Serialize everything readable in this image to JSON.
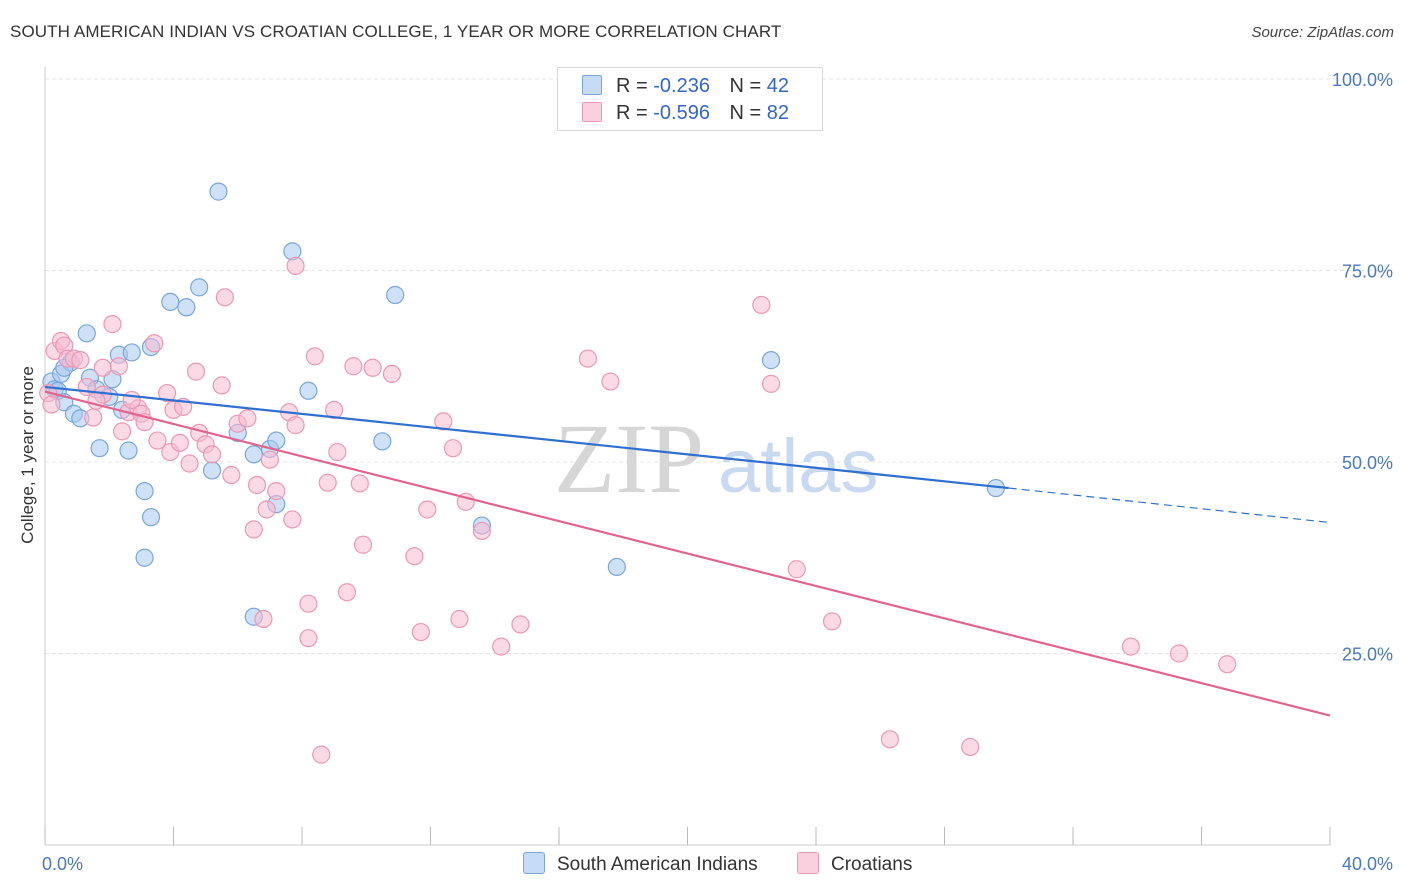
{
  "title": "SOUTH AMERICAN INDIAN VS CROATIAN COLLEGE, 1 YEAR OR MORE CORRELATION CHART",
  "source": "Source: ZipAtlas.com",
  "watermark": {
    "zip": "ZIP",
    "atlas": "atlas"
  },
  "legend": {
    "row1": {
      "r_label": "R =",
      "r_value": "-0.236",
      "n_label": "N =",
      "n_value": "42"
    },
    "row2": {
      "r_label": "R =",
      "r_value": "-0.596",
      "n_label": "N =",
      "n_value": "82"
    }
  },
  "colors": {
    "blue_fill": "#a8c8f0",
    "blue_stroke": "#7aa6dc",
    "blue_line": "#2f6fd0",
    "pink_fill": "#f8bcd0",
    "pink_stroke": "#ec98b4",
    "pink_line": "#e0648e"
  },
  "chart_data": {
    "type": "scatter",
    "xlabel": "",
    "ylabel": "College, 1 year or more",
    "xlim": [
      0,
      40
    ],
    "ylim": [
      0,
      100
    ],
    "x_tick_labels": [
      "0.0%",
      "40.0%"
    ],
    "y_ticks": [
      25,
      50,
      75,
      100
    ],
    "y_tick_labels": [
      "25.0%",
      "50.0%",
      "75.0%",
      "100.0%"
    ],
    "grid": true,
    "legend_position": "top-center",
    "series": [
      {
        "name": "South American Indians",
        "color": "#a8c8f0",
        "trend": {
          "x": [
            0,
            30
          ],
          "y": [
            59.8,
            46.6
          ],
          "dashed_to": [
            40,
            42.1
          ]
        },
        "points": [
          [
            0.2,
            60.5
          ],
          [
            0.3,
            59.5
          ],
          [
            0.4,
            59.3
          ],
          [
            0.5,
            61.5
          ],
          [
            0.6,
            57.8
          ],
          [
            0.8,
            63
          ],
          [
            0.9,
            56.3
          ],
          [
            1.1,
            55.7
          ],
          [
            1.3,
            66.8
          ],
          [
            1.4,
            61
          ],
          [
            1.6,
            59.5
          ],
          [
            1.7,
            51.8
          ],
          [
            2,
            58.5
          ],
          [
            2.1,
            60.8
          ],
          [
            2.3,
            64
          ],
          [
            2.4,
            56.8
          ],
          [
            2.6,
            51.5
          ],
          [
            2.7,
            64.3
          ],
          [
            3.1,
            46.2
          ],
          [
            3.1,
            37.5
          ],
          [
            3.3,
            42.8
          ],
          [
            3.3,
            65
          ],
          [
            3.9,
            70.9
          ],
          [
            4.4,
            70.2
          ],
          [
            4.8,
            72.8
          ],
          [
            5.2,
            48.9
          ],
          [
            5.4,
            85.3
          ],
          [
            6,
            53.8
          ],
          [
            6.5,
            51
          ],
          [
            6.5,
            29.8
          ],
          [
            7,
            51.7
          ],
          [
            7.2,
            52.8
          ],
          [
            7.2,
            44.5
          ],
          [
            7.7,
            77.5
          ],
          [
            8.2,
            59.3
          ],
          [
            10.5,
            52.7
          ],
          [
            10.9,
            71.8
          ],
          [
            13.6,
            41.7
          ],
          [
            17.8,
            36.3
          ],
          [
            22.6,
            63.3
          ],
          [
            29.6,
            46.6
          ],
          [
            0.6,
            62.3
          ]
        ]
      },
      {
        "name": "Croatians",
        "color": "#f8bcd0",
        "trend": {
          "x": [
            0,
            40
          ],
          "y": [
            59.2,
            16.9
          ]
        },
        "points": [
          [
            0.1,
            59
          ],
          [
            0.3,
            64.5
          ],
          [
            0.5,
            65.8
          ],
          [
            0.6,
            65.2
          ],
          [
            0.7,
            63.5
          ],
          [
            0.9,
            63.5
          ],
          [
            1.1,
            63.3
          ],
          [
            1.3,
            59.8
          ],
          [
            1.5,
            55.8
          ],
          [
            1.8,
            58.8
          ],
          [
            1.8,
            62.3
          ],
          [
            2.1,
            68
          ],
          [
            2.3,
            62.5
          ],
          [
            2.4,
            54
          ],
          [
            2.6,
            56.5
          ],
          [
            2.9,
            57
          ],
          [
            3,
            56.3
          ],
          [
            3.1,
            55.2
          ],
          [
            3.4,
            65.5
          ],
          [
            3.5,
            52.8
          ],
          [
            3.8,
            59
          ],
          [
            3.9,
            51.3
          ],
          [
            4,
            56.8
          ],
          [
            4.2,
            52.5
          ],
          [
            4.3,
            57.2
          ],
          [
            4.5,
            49.8
          ],
          [
            4.7,
            61.8
          ],
          [
            4.8,
            53.8
          ],
          [
            5,
            52.3
          ],
          [
            5.2,
            51
          ],
          [
            5.5,
            60
          ],
          [
            5.6,
            71.5
          ],
          [
            5.8,
            48.3
          ],
          [
            6,
            55
          ],
          [
            6.3,
            55.7
          ],
          [
            6.5,
            41.2
          ],
          [
            6.6,
            47
          ],
          [
            6.8,
            29.5
          ],
          [
            6.9,
            43.8
          ],
          [
            7,
            50.3
          ],
          [
            7.2,
            46.2
          ],
          [
            7.6,
            56.5
          ],
          [
            7.7,
            42.5
          ],
          [
            7.8,
            54.8
          ],
          [
            7.8,
            75.6
          ],
          [
            8.2,
            31.5
          ],
          [
            8.2,
            27
          ],
          [
            8.4,
            63.8
          ],
          [
            8.6,
            11.8
          ],
          [
            8.8,
            47.3
          ],
          [
            9,
            56.8
          ],
          [
            9.1,
            51.3
          ],
          [
            9.4,
            33
          ],
          [
            9.6,
            62.5
          ],
          [
            9.8,
            47.2
          ],
          [
            9.9,
            39.2
          ],
          [
            10.2,
            62.3
          ],
          [
            10.8,
            61.5
          ],
          [
            11.5,
            37.7
          ],
          [
            11.7,
            27.8
          ],
          [
            11.9,
            43.8
          ],
          [
            12.4,
            55.3
          ],
          [
            12.7,
            51.8
          ],
          [
            12.9,
            29.5
          ],
          [
            13.1,
            44.8
          ],
          [
            13.6,
            41
          ],
          [
            14.2,
            25.9
          ],
          [
            14.8,
            28.8
          ],
          [
            16.9,
            63.5
          ],
          [
            17.6,
            60.5
          ],
          [
            22.3,
            70.5
          ],
          [
            22.6,
            60.2
          ],
          [
            23.4,
            36
          ],
          [
            24.5,
            29.2
          ],
          [
            26.3,
            13.8
          ],
          [
            28.8,
            12.8
          ],
          [
            33.8,
            25.9
          ],
          [
            35.3,
            25
          ],
          [
            36.8,
            23.6
          ],
          [
            0.2,
            57.5
          ],
          [
            2.7,
            58.1
          ],
          [
            1.6,
            58
          ]
        ]
      }
    ]
  }
}
